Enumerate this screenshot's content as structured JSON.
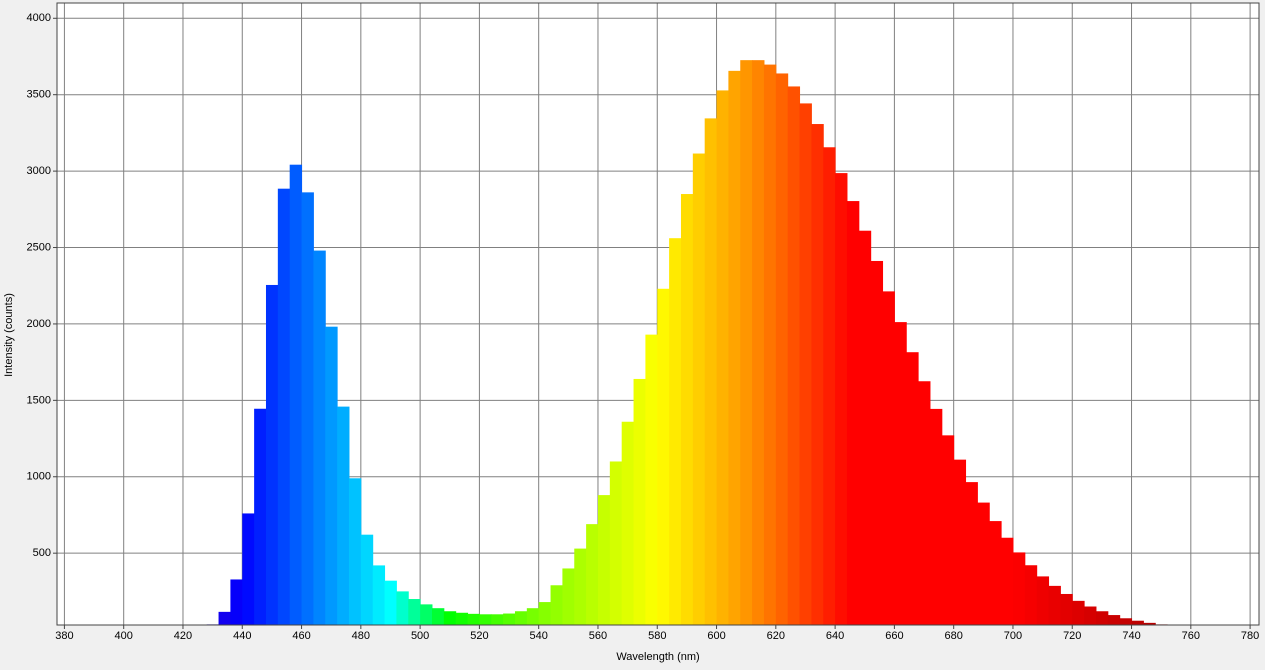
{
  "chart_data": {
    "type": "bar",
    "x_label": "Wavelength (nm)",
    "y_label": "Intensity (counts)",
    "x": [
      420,
      424,
      428,
      432,
      436,
      440,
      444,
      448,
      452,
      456,
      460,
      464,
      468,
      472,
      476,
      480,
      484,
      488,
      492,
      496,
      500,
      504,
      508,
      512,
      516,
      520,
      524,
      528,
      532,
      536,
      540,
      544,
      548,
      552,
      556,
      560,
      564,
      568,
      572,
      576,
      580,
      584,
      588,
      592,
      596,
      600,
      604,
      608,
      612,
      616,
      620,
      624,
      628,
      632,
      636,
      640,
      644,
      648,
      652,
      656,
      660,
      664,
      668,
      672,
      676,
      680,
      684,
      688,
      692,
      696,
      700,
      704,
      708,
      712,
      716,
      720,
      724,
      728,
      732,
      736,
      740,
      744,
      748,
      752,
      756,
      760
    ],
    "values": [
      2,
      8,
      34,
      116,
      328,
      760,
      1445,
      2255,
      2885,
      3042,
      2861,
      2480,
      1982,
      1459,
      990,
      621,
      420,
      320,
      250,
      200,
      165,
      140,
      120,
      110,
      103,
      100,
      100,
      105,
      120,
      140,
      180,
      290,
      400,
      530,
      690,
      880,
      1100,
      1360,
      1640,
      1930,
      2230,
      2561,
      2850,
      3115,
      3345,
      3528,
      3656,
      3726,
      3726,
      3697,
      3639,
      3554,
      3443,
      3308,
      3156,
      2987,
      2804,
      2610,
      2412,
      2213,
      2012,
      1815,
      1625,
      1444,
      1271,
      1112,
      965,
      831,
      710,
      601,
      505,
      421,
      348,
      286,
      233,
      188,
      151,
      120,
      95,
      74,
      58,
      44,
      34,
      26,
      19,
      14
    ],
    "xlim": [
      377.5,
      783
    ],
    "ylim": [
      30,
      4100
    ],
    "xticks": [
      380,
      400,
      420,
      440,
      460,
      480,
      500,
      520,
      540,
      560,
      580,
      600,
      620,
      640,
      660,
      680,
      700,
      720,
      740,
      760,
      780
    ],
    "yticks": [
      500,
      1000,
      1500,
      2000,
      2500,
      3000,
      3500,
      4000
    ],
    "grid": true
  }
}
